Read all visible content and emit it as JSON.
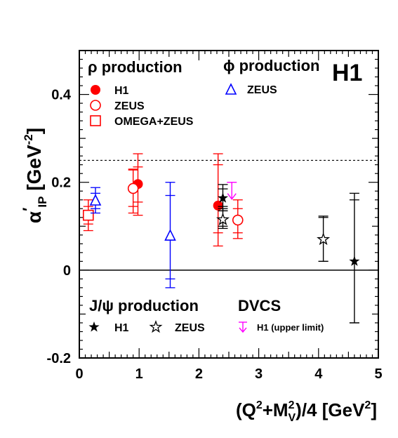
{
  "chart_data": {
    "type": "scatter",
    "xlabel": "(Q²+M²V)/4 [GeV²]",
    "ylabel": "α′IP [GeV⁻²]",
    "xlim": [
      0,
      5
    ],
    "ylim": [
      -0.2,
      0.5
    ],
    "x_ticks": [
      "0",
      "1",
      "2",
      "3",
      "4",
      "5"
    ],
    "y_ticks": [
      "-0.2",
      "0",
      "0.2",
      "0.4"
    ],
    "reference_line": {
      "y": 0.25,
      "style": "dashed"
    },
    "zero_line": {
      "y": 0
    },
    "experiment_label": "H1",
    "legend_groups": {
      "rho": "ρ production",
      "phi": "ϕ production",
      "jpsi": "J/ψ production",
      "dvcs": "DVCS"
    },
    "series": [
      {
        "name": "H1",
        "group": "rho",
        "marker": "filled-circle",
        "color": "#ff0000",
        "points": [
          {
            "x": 0.98,
            "y": 0.196,
            "err_stat": [
              0.155,
              0.235
            ],
            "err_tot": [
              0.125,
              0.265
            ]
          },
          {
            "x": 2.32,
            "y": 0.147,
            "err_stat": [
              0.085,
              0.24
            ],
            "err_tot": [
              0.055,
              0.265
            ]
          }
        ]
      },
      {
        "name": "ZEUS",
        "group": "rho",
        "marker": "open-circle",
        "color": "#ff0000",
        "points": [
          {
            "x": 0.9,
            "y": 0.186,
            "err_stat": [
              0.145,
              0.228
            ],
            "err_tot": [
              0.13,
              0.23
            ]
          },
          {
            "x": 2.65,
            "y": 0.114,
            "err_stat": [
              0.085,
              0.14
            ],
            "err_tot": [
              0.072,
              0.16
            ]
          }
        ]
      },
      {
        "name": "OMEGA+ZEUS",
        "group": "rho",
        "marker": "open-square",
        "color": "#ff0000",
        "points": [
          {
            "x": 0.15,
            "y": 0.125,
            "err_stat": [
              0.105,
              0.145
            ],
            "err_tot": [
              0.09,
              0.16
            ]
          }
        ]
      },
      {
        "name": "ZEUS",
        "group": "phi",
        "marker": "open-triangle",
        "color": "#0000ff",
        "points": [
          {
            "x": 0.27,
            "y": 0.158,
            "err_stat": [
              0.14,
              0.175
            ],
            "err_tot": [
              0.13,
              0.188
            ]
          },
          {
            "x": 1.52,
            "y": 0.078,
            "err_stat": [
              -0.02,
              0.17
            ],
            "err_tot": [
              -0.04,
              0.2
            ]
          }
        ]
      },
      {
        "name": "H1",
        "group": "jpsi",
        "marker": "filled-star",
        "color": "#000000",
        "points": [
          {
            "x": 2.4,
            "y": 0.164,
            "err_stat": [
              0.145,
              0.185
            ],
            "err_tot": [
              0.135,
              0.195
            ]
          },
          {
            "x": 4.6,
            "y": 0.02,
            "err_stat": [
              -0.12,
              0.16
            ],
            "err_tot": [
              -0.12,
              0.175
            ]
          }
        ]
      },
      {
        "name": "ZEUS",
        "group": "jpsi",
        "marker": "open-star",
        "color": "#000000",
        "points": [
          {
            "x": 2.4,
            "y": 0.115,
            "err_stat": [
              0.1,
              0.135
            ],
            "err_tot": [
              0.095,
              0.14
            ]
          },
          {
            "x": 4.08,
            "y": 0.07,
            "err_stat": [
              0.02,
              0.12
            ],
            "err_tot": [
              0.02,
              0.123
            ]
          }
        ]
      },
      {
        "name": "H1 (upper limit)",
        "group": "dvcs",
        "marker": "upper-limit-arrow",
        "color": "#ff00ff",
        "points": [
          {
            "x": 2.55,
            "y": 0.2
          }
        ]
      }
    ]
  }
}
